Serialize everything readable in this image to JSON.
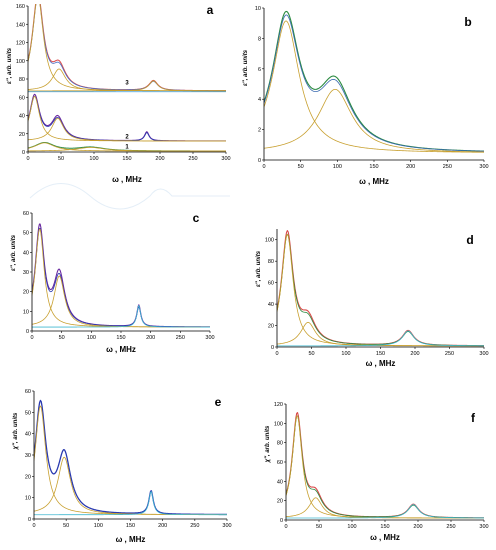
{
  "chart_data": [
    {
      "panel": "a",
      "type": "line",
      "xlabel": "ω , MHz",
      "ylabel": "ε'', arb. units",
      "xlim": [
        0,
        300
      ],
      "ylim": [
        0,
        160
      ],
      "xticks": [
        0,
        50,
        100,
        150,
        200,
        250,
        300
      ],
      "yticks": [
        0,
        20,
        40,
        60,
        80,
        100,
        120,
        140,
        160
      ],
      "annotations": [
        {
          "text": "3",
          "x": 150,
          "y": 74
        },
        {
          "text": "2",
          "x": 150,
          "y": 15
        },
        {
          "text": "1",
          "x": 150,
          "y": 4
        }
      ],
      "curves": [
        {
          "color": "#d94a4a",
          "width": 1.0,
          "baseline": 67,
          "peaks": [
            [
              15,
              104,
              10
            ],
            [
              47,
              24,
              12
            ],
            [
              190,
              11,
              8
            ]
          ]
        },
        {
          "color": "#4a6fc4",
          "width": 0.8,
          "baseline": 67,
          "peaks": [
            [
              15,
              101,
              10
            ],
            [
              47,
              22,
              12
            ],
            [
              190,
              10,
              8
            ]
          ]
        },
        {
          "color": "#c8a030",
          "width": 0.8,
          "baseline": 67,
          "peaks": [
            [
              15,
              104,
              10
            ]
          ]
        },
        {
          "color": "#c8a030",
          "width": 0.8,
          "baseline": 67,
          "peaks": [
            [
              47,
              24,
              12
            ]
          ]
        },
        {
          "color": "#c8a030",
          "width": 0.8,
          "baseline": 67,
          "peaks": [
            [
              190,
              11,
              8
            ]
          ]
        },
        {
          "color": "#6a2aa0",
          "width": 1.1,
          "baseline": 12,
          "peaks": [
            [
              10,
              49,
              9
            ],
            [
              45,
              25,
              11
            ],
            [
              180,
              10,
              4
            ]
          ]
        },
        {
          "color": "#2a3ab0",
          "width": 0.8,
          "baseline": 12,
          "peaks": [
            [
              10,
              47,
              9
            ],
            [
              45,
              23,
              11
            ],
            [
              180,
              9,
              4
            ]
          ]
        },
        {
          "color": "#c8a030",
          "width": 0.8,
          "baseline": 12,
          "peaks": [
            [
              10,
              49,
              9
            ]
          ]
        },
        {
          "color": "#c8a030",
          "width": 0.8,
          "baseline": 12,
          "peaks": [
            [
              45,
              25,
              11
            ]
          ]
        },
        {
          "color": "#2a8a40",
          "width": 1.0,
          "baseline": 1,
          "peaks": [
            [
              25,
              9,
              18
            ],
            [
              95,
              4,
              25
            ]
          ]
        },
        {
          "color": "#c8a030",
          "width": 0.8,
          "baseline": 1,
          "peaks": [
            [
              25,
              9,
              18
            ]
          ]
        },
        {
          "color": "#c8a030",
          "width": 0.8,
          "baseline": 1,
          "peaks": [
            [
              95,
              4,
              25
            ]
          ]
        },
        {
          "color": "#3a9ad9",
          "width": 0.8,
          "baseline": 66,
          "peaks": []
        }
      ]
    },
    {
      "panel": "b",
      "type": "line",
      "xlabel": "ω , MHz",
      "ylabel": "ε'', arb. units",
      "xlim": [
        0,
        300
      ],
      "ylim": [
        0,
        10
      ],
      "xticks": [
        0,
        50,
        100,
        150,
        200,
        250,
        300
      ],
      "yticks": [
        0,
        2,
        4,
        6,
        8,
        10
      ],
      "annotations": [],
      "curves": [
        {
          "color": "#2a8a40",
          "width": 1.1,
          "baseline": 0.45,
          "peaks": [
            [
              30,
              8.7,
              22
            ],
            [
              97,
              4.2,
              28
            ]
          ]
        },
        {
          "color": "#3a6ab0",
          "width": 0.8,
          "baseline": 0.45,
          "peaks": [
            [
              30,
              8.5,
              22
            ],
            [
              97,
              4.0,
              28
            ]
          ]
        },
        {
          "color": "#c8a030",
          "width": 0.8,
          "baseline": 0.45,
          "peaks": [
            [
              30,
              8.7,
              22
            ]
          ]
        },
        {
          "color": "#c8a030",
          "width": 0.8,
          "baseline": 0.45,
          "peaks": [
            [
              97,
              4.2,
              28
            ]
          ]
        }
      ]
    },
    {
      "panel": "c",
      "type": "line",
      "xlabel": "ω , MHz",
      "ylabel": "ε'', arb. units",
      "xlim": [
        0,
        300
      ],
      "ylim": [
        0,
        60
      ],
      "xticks": [
        0,
        50,
        100,
        150,
        200,
        250,
        300
      ],
      "yticks": [
        0,
        10,
        20,
        30,
        40,
        50,
        60
      ],
      "annotations": [],
      "curves": [
        {
          "color": "#6a2aa0",
          "width": 1.1,
          "baseline": 2,
          "peaks": [
            [
              13,
              50,
              9
            ],
            [
              46,
              26,
              11
            ],
            [
              180,
              11,
              4
            ]
          ]
        },
        {
          "color": "#2a3ab0",
          "width": 0.8,
          "baseline": 2,
          "peaks": [
            [
              13,
              48,
              9
            ],
            [
              46,
              24,
              11
            ],
            [
              180,
              10,
              4
            ]
          ]
        },
        {
          "color": "#c8a030",
          "width": 0.8,
          "baseline": 2,
          "peaks": [
            [
              13,
              50,
              9
            ]
          ]
        },
        {
          "color": "#c8a030",
          "width": 0.8,
          "baseline": 2,
          "peaks": [
            [
              46,
              26,
              11
            ]
          ]
        },
        {
          "color": "#40b8d0",
          "width": 0.8,
          "baseline": 2,
          "peaks": [
            [
              180,
              11,
              4
            ]
          ]
        }
      ]
    },
    {
      "panel": "d",
      "type": "line",
      "xlabel": "ω , MHz",
      "ylabel": "ε'', arb. units",
      "xlim": [
        0,
        300
      ],
      "ylim": [
        0,
        110
      ],
      "xticks": [
        0,
        50,
        100,
        150,
        200,
        250,
        300
      ],
      "yticks": [
        0,
        20,
        40,
        60,
        80,
        100
      ],
      "annotations": [],
      "curves": [
        {
          "color": "#d94a4a",
          "width": 1.1,
          "baseline": 1,
          "peaks": [
            [
              15,
              104,
              10
            ],
            [
              45,
              22,
              13
            ],
            [
              190,
              14,
              10
            ]
          ]
        },
        {
          "color": "#2a8a40",
          "width": 0.8,
          "baseline": 1,
          "peaks": [
            [
              15,
              101,
              10
            ],
            [
              45,
              20,
              13
            ],
            [
              190,
              13,
              10
            ]
          ]
        },
        {
          "color": "#c8a030",
          "width": 0.8,
          "baseline": 1,
          "peaks": [
            [
              15,
              104,
              10
            ]
          ]
        },
        {
          "color": "#c8a030",
          "width": 0.8,
          "baseline": 1,
          "peaks": [
            [
              45,
              22,
              13
            ]
          ]
        },
        {
          "color": "#40b8d0",
          "width": 0.8,
          "baseline": 1,
          "peaks": [
            [
              190,
              14,
              10
            ]
          ]
        }
      ]
    },
    {
      "panel": "e",
      "type": "line",
      "xlabel": "ω , MHz",
      "ylabel": "χ'', arb. units",
      "xlim": [
        0,
        300
      ],
      "ylim": [
        0,
        60
      ],
      "xticks": [
        0,
        50,
        100,
        150,
        200,
        250,
        300
      ],
      "yticks": [
        0,
        10,
        20,
        30,
        40,
        50,
        60
      ],
      "annotations": [],
      "curves": [
        {
          "color": "#2a3ab0",
          "width": 1.3,
          "baseline": 2,
          "peaks": [
            [
              10,
              51,
              10
            ],
            [
              47,
              27,
              12
            ],
            [
              182,
              11,
              4
            ]
          ]
        },
        {
          "color": "#c8a030",
          "width": 0.8,
          "baseline": 2,
          "peaks": [
            [
              10,
              51,
              10
            ]
          ]
        },
        {
          "color": "#c8a030",
          "width": 0.8,
          "baseline": 2,
          "peaks": [
            [
              47,
              27,
              12
            ]
          ]
        },
        {
          "color": "#40b8d0",
          "width": 0.8,
          "baseline": 2,
          "peaks": [
            [
              182,
              11,
              4
            ]
          ]
        }
      ]
    },
    {
      "panel": "f",
      "type": "line",
      "xlabel": "ω , MHz",
      "ylabel": "χ'', arb. units",
      "xlim": [
        0,
        300
      ],
      "ylim": [
        0,
        120
      ],
      "xticks": [
        0,
        50,
        100,
        150,
        200,
        250,
        300
      ],
      "yticks": [
        0,
        20,
        40,
        60,
        80,
        100,
        120
      ],
      "annotations": [],
      "curves": [
        {
          "color": "#d94a4a",
          "width": 1.1,
          "baseline": 2,
          "peaks": [
            [
              17,
              106,
              9
            ],
            [
              45,
              21,
              12
            ],
            [
              193,
              14,
              10
            ]
          ]
        },
        {
          "color": "#2a8a40",
          "width": 0.8,
          "baseline": 2,
          "peaks": [
            [
              17,
              103,
              9
            ],
            [
              45,
              19,
              12
            ],
            [
              193,
              13,
              10
            ]
          ]
        },
        {
          "color": "#c8a030",
          "width": 0.8,
          "baseline": 2,
          "peaks": [
            [
              17,
              106,
              9
            ]
          ]
        },
        {
          "color": "#c8a030",
          "width": 0.8,
          "baseline": 2,
          "peaks": [
            [
              45,
              21,
              12
            ]
          ]
        },
        {
          "color": "#40b8d0",
          "width": 0.8,
          "baseline": 2,
          "peaks": [
            [
              193,
              14,
              10
            ]
          ]
        }
      ]
    }
  ]
}
